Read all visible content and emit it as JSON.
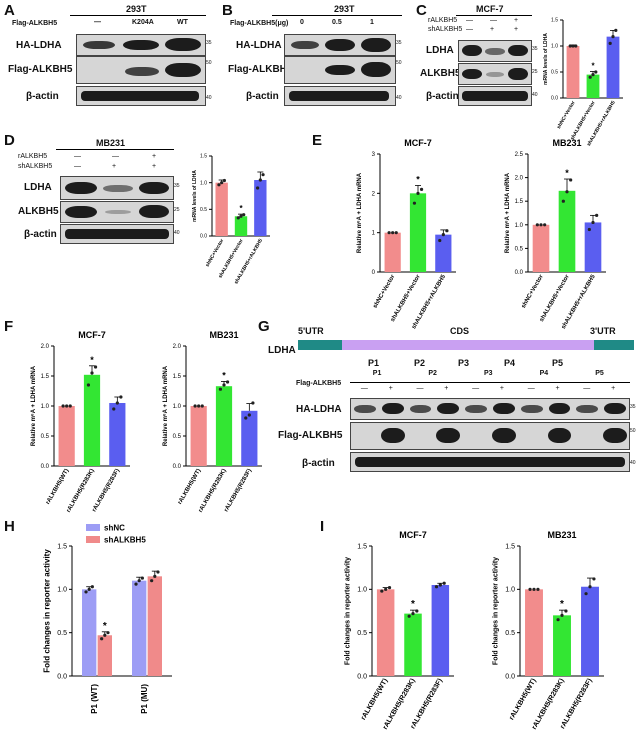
{
  "panels": {
    "A": {
      "letter": "A",
      "cell": "293T",
      "row_header": "Flag-ALKBH5",
      "lanes": [
        "—",
        "K204A",
        "WT"
      ],
      "rows": [
        "HA-LDHA",
        "Flag-ALKBH5",
        "β-actin"
      ],
      "mw": [
        "35",
        "50",
        "40"
      ]
    },
    "B": {
      "letter": "B",
      "cell": "293T",
      "row_header": "Flag-ALKBH5(μg)",
      "lanes": [
        "0",
        "0.5",
        "1"
      ],
      "rows": [
        "HA-LDHA",
        "Flag-ALKBH5",
        "β-actin"
      ],
      "mw": [
        "35",
        "50",
        "40"
      ]
    },
    "C": {
      "letter": "C",
      "cell": "MCF-7",
      "cond_rows": [
        {
          "label": "rALKBH5",
          "marks": [
            "—",
            "—",
            "+"
          ]
        },
        {
          "label": "shALKBH5",
          "marks": [
            "—",
            "+",
            "+"
          ]
        }
      ],
      "rows": [
        "LDHA",
        "ALKBH5",
        "β-actin"
      ],
      "mw": [
        "35",
        "25",
        "40"
      ]
    },
    "D": {
      "letter": "D",
      "cell": "MB231",
      "cond_rows": [
        {
          "label": "rALKBH5",
          "marks": [
            "—",
            "—",
            "+"
          ]
        },
        {
          "label": "shALKBH5",
          "marks": [
            "—",
            "+",
            "+"
          ]
        }
      ],
      "rows": [
        "LDHA",
        "ALKBH5",
        "β-actin"
      ],
      "mw": [
        "35",
        "25",
        "40"
      ]
    },
    "E": {
      "letter": "E"
    },
    "F": {
      "letter": "F"
    },
    "G": {
      "letter": "G",
      "map_gene": "LDHA",
      "utr5": "5'UTR",
      "cds": "CDS",
      "utr3": "3'UTR",
      "probes": [
        "P1",
        "P2",
        "P3",
        "P4",
        "P5"
      ],
      "row_header": "Flag-ALKBH5",
      "lane_marks": [
        "—",
        "+"
      ],
      "rows": [
        "HA-LDHA",
        "Flag-ALKBH5",
        "β-actin"
      ],
      "mw": [
        "35",
        "50",
        "40"
      ]
    },
    "H": {
      "letter": "H"
    },
    "I": {
      "letter": "I"
    }
  },
  "colors": {
    "vector": "#f28c8c",
    "sh": "#33e633",
    "rescue": "#5a5ef0",
    "shNC": "#9d9df5",
    "shALKBH5": "#f08a8a",
    "utr": "#1f8a86",
    "cds": "#c9a0f2"
  },
  "chart_data": [
    {
      "panel": "C",
      "type": "bar",
      "categories": [
        "shNC+Vector",
        "shALKBH5+Vector",
        "shALKBH5+rALKBH5"
      ],
      "values": [
        1.0,
        0.45,
        1.18
      ],
      "errors": [
        0.02,
        0.06,
        0.12
      ],
      "points": [
        [
          1.0,
          1.0,
          1.0
        ],
        [
          0.4,
          0.45,
          0.5
        ],
        [
          1.05,
          1.18,
          1.3
        ]
      ],
      "ylabel": "mRNA levels of LDHA",
      "ylim": [
        0,
        1.5
      ],
      "yticks": [
        "0.0",
        "0.5",
        "1.0",
        "1.5"
      ],
      "sig": [
        "",
        "*",
        ""
      ]
    },
    {
      "panel": "D",
      "type": "bar",
      "categories": [
        "shNC+Vector",
        "shALKBH5+Vector",
        "shALKBH5+rALKBH5"
      ],
      "values": [
        1.0,
        0.37,
        1.05
      ],
      "errors": [
        0.05,
        0.04,
        0.15
      ],
      "points": [
        [
          0.96,
          1.0,
          1.04
        ],
        [
          0.34,
          0.37,
          0.4
        ],
        [
          0.9,
          1.05,
          1.15
        ]
      ],
      "ylabel": "mRNA levels of LDHA",
      "ylim": [
        0,
        1.5
      ],
      "yticks": [
        "0.0",
        "0.5",
        "1.0",
        "1.5"
      ],
      "sig": [
        "",
        "*",
        ""
      ]
    },
    {
      "panel": "E",
      "title": "MCF-7",
      "type": "bar",
      "categories": [
        "shNC+Vector",
        "shALKBH5+Vector",
        "shALKBH5+rALKBH5"
      ],
      "values": [
        1.0,
        2.0,
        0.95
      ],
      "errors": [
        0.0,
        0.2,
        0.12
      ],
      "points": [
        [
          1.0,
          1.0,
          1.0
        ],
        [
          1.75,
          2.0,
          2.1
        ],
        [
          0.8,
          0.95,
          1.05
        ]
      ],
      "ylabel": "Relative m⁶A + LDHA mRNA",
      "ylim": [
        0,
        3
      ],
      "yticks": [
        "0",
        "1",
        "2",
        "3"
      ],
      "sig": [
        "",
        "*",
        ""
      ]
    },
    {
      "panel": "E",
      "title": "MB231",
      "type": "bar",
      "categories": [
        "shNC+Vector",
        "shALKBH5+Vector",
        "shALKBH5+rALKBH5"
      ],
      "values": [
        1.0,
        1.72,
        1.05
      ],
      "errors": [
        0.0,
        0.25,
        0.15
      ],
      "points": [
        [
          1.0,
          1.0,
          1.0
        ],
        [
          1.5,
          1.7,
          1.95
        ],
        [
          0.9,
          1.05,
          1.2
        ]
      ],
      "ylabel": "Relative m⁶A + LDHA mRNA",
      "ylim": [
        0,
        2.5
      ],
      "yticks": [
        "0.0",
        "0.5",
        "1.0",
        "1.5",
        "2.0",
        "2.5"
      ],
      "sig": [
        "",
        "*",
        ""
      ]
    },
    {
      "panel": "F",
      "title": "MCF-7",
      "type": "bar",
      "categories": [
        "rALKBH5(WT)",
        "rALKBH5(R283K)",
        "rALKBH5(R283F)"
      ],
      "values": [
        1.0,
        1.52,
        1.05
      ],
      "errors": [
        0.0,
        0.15,
        0.1
      ],
      "points": [
        [
          1.0,
          1.0,
          1.0
        ],
        [
          1.35,
          1.55,
          1.65
        ],
        [
          0.95,
          1.05,
          1.15
        ]
      ],
      "ylabel": "Relative m⁶A + LDHA mRNA",
      "ylim": [
        0,
        2.0
      ],
      "yticks": [
        "0.0",
        "0.5",
        "1.0",
        "1.5",
        "2.0"
      ],
      "sig": [
        "",
        "*",
        ""
      ]
    },
    {
      "panel": "F",
      "title": "MB231",
      "type": "bar",
      "categories": [
        "rALKBH5(WT)",
        "rALKBH5(R283K)",
        "rALKBH5(R283F)"
      ],
      "values": [
        1.0,
        1.33,
        0.92
      ],
      "errors": [
        0.0,
        0.08,
        0.12
      ],
      "points": [
        [
          1.0,
          1.0,
          1.0
        ],
        [
          1.28,
          1.35,
          1.4
        ],
        [
          0.8,
          0.85,
          1.05
        ]
      ],
      "ylabel": "Relative m⁶A + LDHA mRNA",
      "ylim": [
        0,
        2.0
      ],
      "yticks": [
        "0.0",
        "0.5",
        "1.0",
        "1.5",
        "2.0"
      ],
      "sig": [
        "",
        "*",
        ""
      ]
    },
    {
      "panel": "H",
      "type": "bar",
      "categories": [
        "P1 (WT)",
        "P1 (MU)"
      ],
      "series": [
        {
          "name": "shNC",
          "values": [
            1.0,
            1.1
          ],
          "errors": [
            0.03,
            0.04
          ],
          "points": [
            [
              0.97,
              1.0,
              1.03
            ],
            [
              1.06,
              1.1,
              1.13
            ]
          ]
        },
        {
          "name": "shALKBH5",
          "values": [
            0.47,
            1.15
          ],
          "errors": [
            0.04,
            0.06
          ],
          "points": [
            [
              0.43,
              0.47,
              0.5
            ],
            [
              1.1,
              1.15,
              1.2
            ]
          ]
        }
      ],
      "ylabel": "Fold changes in reporter activity",
      "ylim": [
        0,
        1.5
      ],
      "yticks": [
        "0.0",
        "0.5",
        "1.0",
        "1.5"
      ],
      "sig_label": "*",
      "legend": "top-left"
    },
    {
      "panel": "I",
      "title": "MCF-7",
      "type": "bar",
      "categories": [
        "rALKBH5(WT)",
        "rALKBH5(R283K)",
        "rALKBH5(R283F)"
      ],
      "values": [
        1.0,
        0.72,
        1.05
      ],
      "errors": [
        0.02,
        0.04,
        0.02
      ],
      "points": [
        [
          0.98,
          1.0,
          1.02
        ],
        [
          0.69,
          0.72,
          0.75
        ],
        [
          1.03,
          1.05,
          1.07
        ]
      ],
      "ylabel": "Fold changes in reporter activity",
      "ylim": [
        0,
        1.5
      ],
      "yticks": [
        "0.0",
        "0.5",
        "1.0",
        "1.5"
      ],
      "sig": [
        "",
        "*",
        ""
      ]
    },
    {
      "panel": "I",
      "title": "MB231",
      "type": "bar",
      "categories": [
        "rALKBH5(WT)",
        "rALKBH5(R283K)",
        "rALKBH5(R283F)"
      ],
      "values": [
        1.0,
        0.7,
        1.03
      ],
      "errors": [
        0.0,
        0.06,
        0.1
      ],
      "points": [
        [
          1.0,
          1.0,
          1.0
        ],
        [
          0.65,
          0.7,
          0.75
        ],
        [
          0.95,
          1.03,
          1.12
        ]
      ],
      "ylabel": "Fold changes in reporter activity",
      "ylim": [
        0,
        1.5
      ],
      "yticks": [
        "0.0",
        "0.5",
        "1.0",
        "1.5"
      ],
      "sig": [
        "",
        "*",
        ""
      ]
    }
  ]
}
